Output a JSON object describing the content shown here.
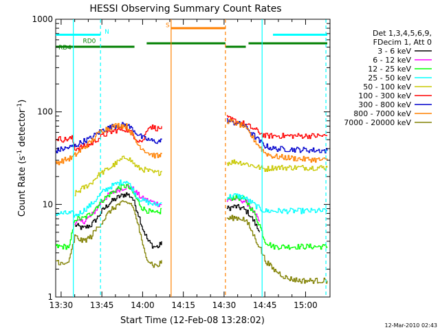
{
  "chart_data": {
    "type": "line",
    "title": "HESSI Observing Summary Count Rates",
    "xlabel": "Start Time (12-Feb-08 13:28:02)",
    "ylabel_main": "Count Rate (s",
    "ylabel_sup1": "-1",
    "ylabel_mid": " detector",
    "ylabel_sup2": "-1",
    "ylabel_end": ")",
    "xlim": [
      0,
      101
    ],
    "ylim": [
      1,
      1000
    ],
    "yscale": "log",
    "x_unit": "minutes after 13:28",
    "x_ticks": [
      {
        "x": 2,
        "label": "13:30"
      },
      {
        "x": 17,
        "label": "13:45"
      },
      {
        "x": 32,
        "label": "14:00"
      },
      {
        "x": 47,
        "label": "14:15"
      },
      {
        "x": 62,
        "label": "14:30"
      },
      {
        "x": 77,
        "label": "14:45"
      },
      {
        "x": 92,
        "label": "15:00"
      }
    ],
    "y_ticks": [
      {
        "y": 1,
        "label": "1"
      },
      {
        "y": 10,
        "label": "10"
      },
      {
        "y": 100,
        "label": "100"
      },
      {
        "y": 1000,
        "label": "1000"
      }
    ],
    "legend_header": [
      "Det 1,3,4,5,6,9,",
      "FDecim 1, Att 0"
    ],
    "legend_placement": "right",
    "timestamp": "12-Mar-2010 02:43",
    "segment_labels": [
      {
        "text": "N",
        "x": 18,
        "y": 700,
        "color": "#00ffff"
      },
      {
        "text": "S",
        "x": 40.5,
        "y": 820,
        "color": "#ff8000"
      },
      {
        "text": "RD0",
        "x": 10,
        "y": 555,
        "color": "#007f00"
      },
      {
        "text": "RD4",
        "x": 1,
        "y": 470,
        "color": "#007f00"
      }
    ],
    "flag_bars": [
      {
        "name": "N",
        "color": "#00ffff",
        "y": 680,
        "ranges": [
          [
            0,
            16.5
          ],
          [
            80,
            100
          ]
        ]
      },
      {
        "name": "S",
        "color": "#ff8000",
        "y": 800,
        "ranges": [
          [
            42.5,
            62.5
          ]
        ]
      },
      {
        "name": "RD0",
        "color": "#007f00",
        "y": 550,
        "ranges": [
          [
            33.5,
            62.5
          ],
          [
            71,
            100
          ]
        ]
      },
      {
        "name": "RD4",
        "color": "#007f00",
        "y": 505,
        "ranges": [
          [
            0,
            29
          ],
          [
            62.5,
            70
          ]
        ]
      }
    ],
    "vlines": [
      {
        "x": 6.5,
        "color": "#00ffff",
        "style": "solid"
      },
      {
        "x": 16.5,
        "color": "#00ffff",
        "style": "dashed"
      },
      {
        "x": 76,
        "color": "#00ffff",
        "style": "solid"
      },
      {
        "x": 99.5,
        "color": "#00ffff",
        "style": "dashed"
      },
      {
        "x": 42.5,
        "color": "#ff8000",
        "style": "solid"
      },
      {
        "x": 62.5,
        "color": "#ff8000",
        "style": "dashed"
      }
    ],
    "series": [
      {
        "name": "3 - 6 keV",
        "color": "#000000",
        "segments": [
          [
            [
              7,
              6.0
            ],
            [
              10,
              5.5
            ],
            [
              13,
              6.0
            ],
            [
              15,
              7.0
            ],
            [
              17,
              8.5
            ],
            [
              20,
              10.5
            ],
            [
              23,
              12
            ],
            [
              26,
              13
            ],
            [
              28,
              12
            ],
            [
              30,
              8.5
            ],
            [
              32,
              5.5
            ],
            [
              34,
              4.0
            ],
            [
              36,
              3.5
            ],
            [
              38,
              3.5
            ],
            [
              39,
              4.0
            ]
          ],
          [
            [
              63,
              9
            ],
            [
              66,
              9.5
            ],
            [
              69,
              9
            ],
            [
              71,
              8
            ],
            [
              73,
              6.5
            ],
            [
              75,
              5.0
            ]
          ]
        ]
      },
      {
        "name": "6 - 12 keV",
        "color": "#ff00ff",
        "segments": [
          [
            [
              7,
              6.5
            ],
            [
              10,
              6.5
            ],
            [
              13,
              7.5
            ],
            [
              15,
              9
            ],
            [
              17,
              11
            ],
            [
              20,
              13
            ],
            [
              23,
              14.5
            ],
            [
              26,
              15.5
            ],
            [
              28,
              15
            ],
            [
              30,
              13
            ],
            [
              32,
              11.5
            ],
            [
              34,
              11
            ],
            [
              36,
              10.5
            ],
            [
              38,
              10
            ],
            [
              39,
              10
            ]
          ],
          [
            [
              63,
              11
            ],
            [
              66,
              11.5
            ],
            [
              69,
              11
            ],
            [
              71,
              10
            ],
            [
              73,
              8
            ],
            [
              75,
              6.5
            ]
          ]
        ]
      },
      {
        "name": "12 - 25 keV",
        "color": "#00ff00",
        "segments": [
          [
            [
              0,
              3.5
            ],
            [
              3,
              3.5
            ],
            [
              5,
              3.5
            ],
            [
              7,
              7.0
            ],
            [
              10,
              7.0
            ],
            [
              13,
              8.0
            ],
            [
              15,
              9.5
            ],
            [
              17,
              11
            ],
            [
              20,
              13
            ],
            [
              23,
              15
            ],
            [
              26,
              16
            ],
            [
              28,
              14
            ],
            [
              30,
              11
            ],
            [
              32,
              9
            ],
            [
              34,
              8.5
            ],
            [
              36,
              8.0
            ],
            [
              38,
              8.0
            ],
            [
              39,
              9.0
            ]
          ],
          [
            [
              63,
              11.5
            ],
            [
              66,
              12
            ],
            [
              69,
              11.5
            ],
            [
              71,
              10
            ],
            [
              73,
              8
            ],
            [
              75,
              6
            ],
            [
              77,
              4
            ],
            [
              80,
              3.5
            ],
            [
              90,
              3.5
            ],
            [
              100,
              3.5
            ]
          ]
        ]
      },
      {
        "name": "25 - 50 keV",
        "color": "#00ffff",
        "segments": [
          [
            [
              0,
              8
            ],
            [
              3,
              8
            ],
            [
              6,
              8
            ],
            [
              7,
              7.5
            ],
            [
              10,
              8.5
            ],
            [
              13,
              10
            ],
            [
              15,
              11.5
            ],
            [
              17,
              13.5
            ],
            [
              20,
              15.5
            ],
            [
              23,
              17
            ],
            [
              26,
              18
            ],
            [
              28,
              15
            ],
            [
              30,
              12
            ],
            [
              32,
              11
            ],
            [
              34,
              10.5
            ],
            [
              36,
              10
            ],
            [
              38,
              10
            ],
            [
              39,
              10.5
            ]
          ],
          [
            [
              63,
              12
            ],
            [
              66,
              12.5
            ],
            [
              69,
              12
            ],
            [
              71,
              11
            ],
            [
              73,
              10
            ],
            [
              75,
              9
            ],
            [
              77,
              8.5
            ],
            [
              80,
              8.5
            ],
            [
              90,
              8.5
            ],
            [
              100,
              8.5
            ]
          ]
        ]
      },
      {
        "name": "50 - 100 keV",
        "color": "#c8c800",
        "segments": [
          [
            [
              7,
              13
            ],
            [
              10,
              15
            ],
            [
              13,
              17
            ],
            [
              15,
              20
            ],
            [
              17,
              22
            ],
            [
              20,
              25
            ],
            [
              23,
              29
            ],
            [
              26,
              33
            ],
            [
              28,
              29
            ],
            [
              30,
              25
            ],
            [
              32,
              24
            ],
            [
              34,
              23
            ],
            [
              36,
              22
            ],
            [
              38,
              22
            ],
            [
              39,
              23
            ]
          ],
          [
            [
              63,
              28
            ],
            [
              66,
              29
            ],
            [
              69,
              28
            ],
            [
              71,
              27
            ],
            [
              73,
              26
            ],
            [
              75,
              25
            ],
            [
              77,
              24
            ],
            [
              80,
              25
            ],
            [
              90,
              25
            ],
            [
              100,
              25
            ]
          ]
        ]
      },
      {
        "name": "100 - 300 keV",
        "color": "#ff0000",
        "segments": [
          [
            [
              0,
              52
            ],
            [
              3,
              50
            ],
            [
              6,
              52
            ],
            [
              7,
              40
            ],
            [
              10,
              42
            ],
            [
              13,
              45
            ],
            [
              15,
              50
            ],
            [
              17,
              55
            ],
            [
              20,
              60
            ],
            [
              23,
              64
            ],
            [
              26,
              65
            ],
            [
              28,
              58
            ],
            [
              30,
              50
            ],
            [
              32,
              48
            ],
            [
              34,
              70
            ],
            [
              36,
              68
            ],
            [
              38,
              65
            ],
            [
              39,
              70
            ]
          ],
          [
            [
              63,
              85
            ],
            [
              66,
              80
            ],
            [
              69,
              75
            ],
            [
              71,
              70
            ],
            [
              73,
              65
            ],
            [
              75,
              60
            ],
            [
              77,
              55
            ],
            [
              80,
              55
            ],
            [
              90,
              55
            ],
            [
              100,
              55
            ]
          ]
        ]
      },
      {
        "name": "300 - 800 keV",
        "color": "#0000cc",
        "segments": [
          [
            [
              0,
              38
            ],
            [
              3,
              40
            ],
            [
              6,
              42
            ],
            [
              7,
              43
            ],
            [
              10,
              48
            ],
            [
              13,
              52
            ],
            [
              15,
              58
            ],
            [
              17,
              63
            ],
            [
              20,
              68
            ],
            [
              23,
              72
            ],
            [
              26,
              72
            ],
            [
              28,
              66
            ],
            [
              30,
              58
            ],
            [
              32,
              52
            ],
            [
              34,
              50
            ],
            [
              36,
              48
            ],
            [
              38,
              48
            ],
            [
              39,
              50
            ]
          ],
          [
            [
              63,
              80
            ],
            [
              66,
              76
            ],
            [
              69,
              72
            ],
            [
              71,
              64
            ],
            [
              73,
              55
            ],
            [
              75,
              48
            ],
            [
              77,
              43
            ],
            [
              80,
              40
            ],
            [
              90,
              39
            ],
            [
              100,
              38
            ]
          ]
        ]
      },
      {
        "name": "800 - 7000 keV",
        "color": "#ff8000",
        "segments": [
          [
            [
              0,
              28
            ],
            [
              3,
              30
            ],
            [
              6,
              32
            ],
            [
              7,
              34
            ],
            [
              10,
              40
            ],
            [
              13,
              48
            ],
            [
              15,
              56
            ],
            [
              17,
              63
            ],
            [
              20,
              68
            ],
            [
              23,
              72
            ],
            [
              26,
              70
            ],
            [
              28,
              58
            ],
            [
              30,
              45
            ],
            [
              32,
              40
            ],
            [
              34,
              36
            ],
            [
              36,
              34
            ],
            [
              38,
              33
            ],
            [
              39,
              35
            ]
          ],
          [
            [
              63,
              80
            ],
            [
              66,
              76
            ],
            [
              69,
              70
            ],
            [
              71,
              60
            ],
            [
              73,
              50
            ],
            [
              75,
              42
            ],
            [
              77,
              36
            ],
            [
              80,
              33
            ],
            [
              90,
              31
            ],
            [
              100,
              30
            ]
          ]
        ]
      },
      {
        "name": "7000 - 20000 keV",
        "color": "#808000",
        "segments": [
          [
            [
              0,
              2.5
            ],
            [
              3,
              2.2
            ],
            [
              5,
              2.5
            ],
            [
              7,
              4.5
            ],
            [
              10,
              4.0
            ],
            [
              13,
              4.5
            ],
            [
              15,
              5.5
            ],
            [
              17,
              6.5
            ],
            [
              20,
              8.5
            ],
            [
              23,
              10
            ],
            [
              26,
              10.5
            ],
            [
              28,
              10
            ],
            [
              30,
              6.5
            ],
            [
              32,
              3.5
            ],
            [
              34,
              2.5
            ],
            [
              36,
              2.2
            ],
            [
              38,
              2.2
            ],
            [
              39,
              2.5
            ]
          ],
          [
            [
              63,
              7
            ],
            [
              66,
              7.2
            ],
            [
              69,
              7
            ],
            [
              71,
              6
            ],
            [
              73,
              4.5
            ],
            [
              75,
              3.5
            ],
            [
              77,
              2.5
            ],
            [
              80,
              2.0
            ],
            [
              85,
              1.6
            ],
            [
              90,
              1.5
            ],
            [
              94,
              1.5
            ],
            [
              100,
              1.5
            ]
          ]
        ]
      }
    ]
  }
}
